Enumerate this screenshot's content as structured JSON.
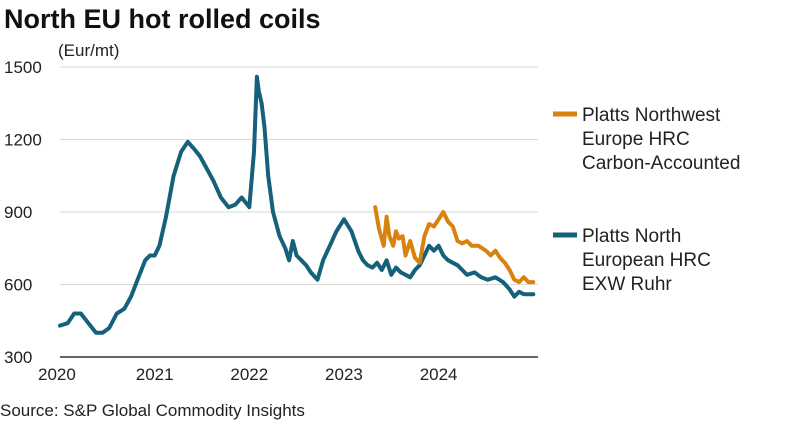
{
  "chart_data": {
    "type": "line",
    "title": "North EU hot rolled coils",
    "ylabel": "(Eur/mt)",
    "xlabel": "",
    "ylim": [
      300,
      1500
    ],
    "xlim": [
      2020,
      2025.05
    ],
    "yticks": [
      300,
      600,
      900,
      1200,
      1500
    ],
    "xticks": [
      "2020",
      "2021",
      "2022",
      "2023",
      "2024"
    ],
    "grid": true,
    "legend_position": "right",
    "series": [
      {
        "name": "Platts Northwest Europe HRC Carbon-Accounted",
        "legend_lines": [
          "Platts Northwest",
          "Europe HRC",
          "Carbon-Accounted"
        ],
        "color": "#d9820f",
        "x": [
          2023.33,
          2023.37,
          2023.42,
          2023.45,
          2023.48,
          2023.52,
          2023.55,
          2023.58,
          2023.62,
          2023.65,
          2023.7,
          2023.75,
          2023.8,
          2023.85,
          2023.9,
          2023.95,
          2024.0,
          2024.05,
          2024.1,
          2024.15,
          2024.2,
          2024.25,
          2024.3,
          2024.35,
          2024.42,
          2024.5,
          2024.55,
          2024.6,
          2024.65,
          2024.7,
          2024.75,
          2024.8,
          2024.85,
          2024.9,
          2024.95,
          2025.0
        ],
        "values": [
          920,
          830,
          760,
          880,
          800,
          760,
          820,
          790,
          800,
          720,
          780,
          710,
          690,
          800,
          850,
          840,
          870,
          900,
          860,
          840,
          780,
          770,
          780,
          760,
          760,
          740,
          720,
          740,
          710,
          690,
          660,
          620,
          610,
          630,
          610,
          610
        ]
      },
      {
        "name": "Platts North European HRC EXW Ruhr",
        "legend_lines": [
          "Platts North",
          "European HRC",
          "EXW Ruhr"
        ],
        "color": "#15607a",
        "x": [
          2020.0,
          2020.08,
          2020.15,
          2020.22,
          2020.3,
          2020.38,
          2020.45,
          2020.52,
          2020.6,
          2020.68,
          2020.75,
          2020.82,
          2020.9,
          2020.95,
          2021.0,
          2021.05,
          2021.12,
          2021.2,
          2021.28,
          2021.35,
          2021.42,
          2021.48,
          2021.55,
          2021.62,
          2021.7,
          2021.78,
          2021.85,
          2021.92,
          2022.0,
          2022.05,
          2022.08,
          2022.1,
          2022.13,
          2022.16,
          2022.2,
          2022.25,
          2022.32,
          2022.38,
          2022.42,
          2022.46,
          2022.5,
          2022.55,
          2022.6,
          2022.65,
          2022.72,
          2022.78,
          2022.85,
          2022.92,
          2023.0,
          2023.08,
          2023.15,
          2023.2,
          2023.25,
          2023.3,
          2023.35,
          2023.4,
          2023.45,
          2023.5,
          2023.55,
          2023.6,
          2023.65,
          2023.7,
          2023.75,
          2023.8,
          2023.85,
          2023.9,
          2023.95,
          2024.0,
          2024.05,
          2024.1,
          2024.15,
          2024.2,
          2024.25,
          2024.3,
          2024.38,
          2024.45,
          2024.52,
          2024.6,
          2024.68,
          2024.75,
          2024.8,
          2024.85,
          2024.9,
          2024.95,
          2025.0
        ],
        "values": [
          430,
          440,
          480,
          480,
          440,
          400,
          400,
          420,
          480,
          500,
          550,
          620,
          700,
          720,
          720,
          760,
          880,
          1050,
          1150,
          1190,
          1160,
          1130,
          1080,
          1030,
          960,
          920,
          930,
          960,
          920,
          1150,
          1460,
          1400,
          1350,
          1250,
          1050,
          900,
          800,
          750,
          700,
          780,
          720,
          700,
          680,
          650,
          620,
          700,
          760,
          820,
          870,
          820,
          740,
          700,
          680,
          670,
          690,
          660,
          700,
          640,
          670,
          650,
          640,
          630,
          660,
          680,
          720,
          760,
          740,
          760,
          720,
          700,
          690,
          680,
          660,
          640,
          650,
          630,
          620,
          630,
          610,
          580,
          550,
          570,
          560,
          560,
          560
        ]
      }
    ]
  },
  "source_text": "Source: S&P Global Commodity Insights"
}
